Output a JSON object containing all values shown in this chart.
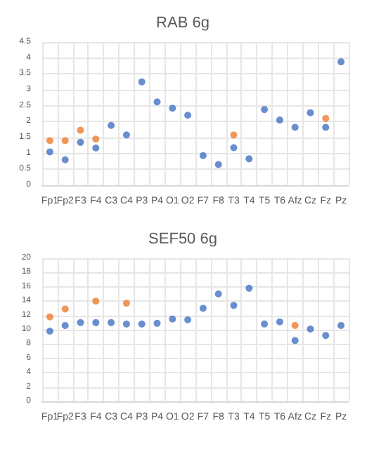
{
  "chart_data": [
    {
      "type": "scatter",
      "title": "RAB 6g",
      "categories": [
        "Fp1",
        "Fp2",
        "F3",
        "F4",
        "C3",
        "C4",
        "P3",
        "P4",
        "O1",
        "O2",
        "F7",
        "F8",
        "T3",
        "T4",
        "T5",
        "T6",
        "Afz",
        "Cz",
        "Fz",
        "Pz"
      ],
      "series": [
        {
          "color": "#4472c4",
          "values": [
            1.05,
            0.8,
            1.35,
            1.17,
            1.88,
            1.58,
            3.25,
            2.62,
            2.42,
            2.2,
            0.93,
            0.65,
            1.18,
            0.83,
            2.38,
            2.05,
            1.82,
            2.28,
            1.82,
            3.88
          ]
        },
        {
          "color": "#ed7d31",
          "values": [
            1.4,
            1.4,
            1.73,
            1.45,
            null,
            null,
            null,
            null,
            null,
            null,
            null,
            null,
            1.58,
            null,
            null,
            null,
            null,
            null,
            2.1,
            null
          ]
        }
      ],
      "ylim": [
        0,
        4.5
      ],
      "yticks": [
        0,
        0.5,
        1,
        1.5,
        2,
        2.5,
        3,
        3.5,
        4,
        4.5
      ],
      "grid": true,
      "marker": "circle"
    },
    {
      "type": "scatter",
      "title": "SEF50 6g",
      "categories": [
        "Fp1",
        "Fp2",
        "F3",
        "F4",
        "C3",
        "C4",
        "P3",
        "P4",
        "O1",
        "O2",
        "F7",
        "F8",
        "T3",
        "T4",
        "T5",
        "T6",
        "Afz",
        "Cz",
        "Fz",
        "Pz"
      ],
      "series": [
        {
          "color": "#4472c4",
          "values": [
            9.8,
            10.6,
            11,
            11,
            11,
            10.8,
            10.8,
            10.9,
            11.5,
            11.4,
            13,
            15,
            13.4,
            15.8,
            10.8,
            11.1,
            8.5,
            10.1,
            9.2,
            10.6
          ]
        },
        {
          "color": "#ed7d31",
          "values": [
            11.8,
            12.9,
            null,
            14,
            null,
            13.7,
            null,
            null,
            null,
            null,
            null,
            null,
            null,
            null,
            null,
            null,
            10.6,
            null,
            null,
            null
          ]
        }
      ],
      "ylim": [
        0,
        20
      ],
      "yticks": [
        0,
        2,
        4,
        6,
        8,
        10,
        12,
        14,
        16,
        18,
        20
      ],
      "grid": true,
      "marker": "circle"
    }
  ]
}
